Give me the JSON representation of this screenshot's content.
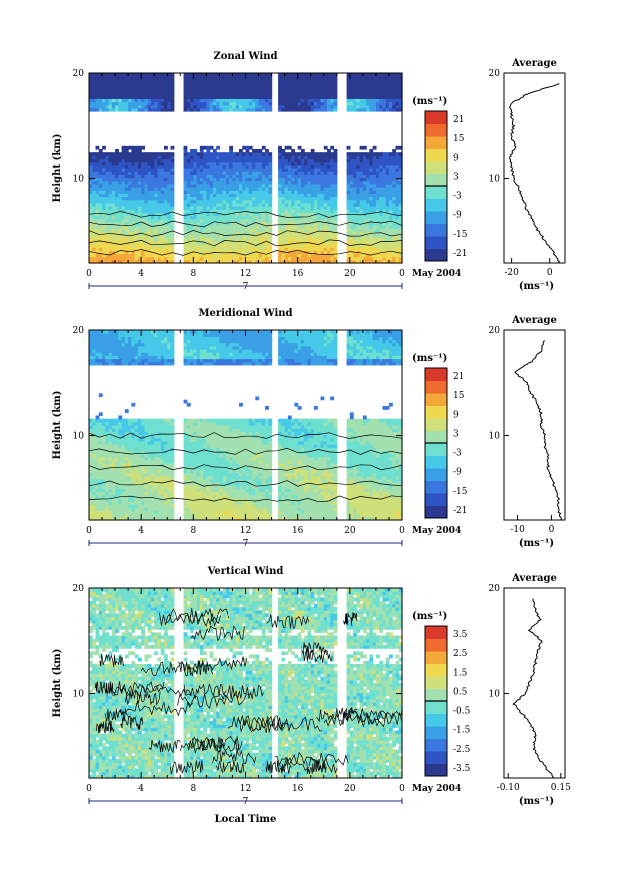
{
  "figure": {
    "x_axis_title": "Local Time",
    "date_label": "May 2004",
    "day_marker": "7"
  },
  "colors": {
    "colorbar": [
      "#2b3a8f",
      "#2f55c4",
      "#3a78e0",
      "#3aa0e6",
      "#46c9e8",
      "#6fe0d0",
      "#a3e0b0",
      "#cfe07a",
      "#f0d84e",
      "#f5a83a",
      "#ef6a2e",
      "#d93a2a"
    ],
    "contour": "#000000",
    "zero_line": "#000000"
  },
  "chart_data": [
    {
      "type": "heatmap",
      "title": "Zonal Wind",
      "ylabel": "Height (km)",
      "xlim": [
        0,
        24
      ],
      "ylim": [
        2,
        20
      ],
      "x_ticks": [
        "0",
        "4",
        "8",
        "12",
        "16",
        "20",
        "0"
      ],
      "y_ticks": [
        "20",
        "10"
      ],
      "colorbar": {
        "unit": "(ms⁻¹)",
        "ticks": [
          "21",
          "15",
          "9",
          "3",
          "-3",
          "-9",
          "-15",
          "-21"
        ],
        "range": [
          -24,
          24
        ]
      },
      "gaps_x": [
        6.9,
        14.3,
        19.4
      ],
      "profile": {
        "title": "Average",
        "unit": "(ms⁻¹)",
        "x_ticks": [
          "-20",
          "0"
        ],
        "xlim": [
          -24,
          8
        ],
        "y_ticks": [
          "20",
          "10"
        ],
        "heights": [
          2,
          3,
          4,
          5,
          6,
          7,
          8,
          9,
          10,
          11,
          12,
          13,
          14,
          15,
          16,
          17,
          18,
          19
        ],
        "values": [
          5,
          2,
          -2,
          -6,
          -9,
          -12,
          -14,
          -16,
          -19,
          -20,
          -21,
          -18,
          -20,
          -19,
          -20,
          -21,
          -12,
          5
        ]
      }
    },
    {
      "type": "heatmap",
      "title": "Meridional Wind",
      "ylabel": "Height (km)",
      "xlim": [
        0,
        24
      ],
      "ylim": [
        2,
        20
      ],
      "x_ticks": [
        "0",
        "4",
        "8",
        "12",
        "16",
        "20",
        "0"
      ],
      "y_ticks": [
        "20",
        "10"
      ],
      "colorbar": {
        "unit": "(ms⁻¹)",
        "ticks": [
          "21",
          "15",
          "9",
          "3",
          "-3",
          "-9",
          "-15",
          "-21"
        ],
        "range": [
          -24,
          24
        ]
      },
      "gaps_x": [
        6.9,
        14.3,
        19.4
      ],
      "profile": {
        "title": "Average",
        "unit": "(ms⁻¹)",
        "x_ticks": [
          "-10",
          "0"
        ],
        "xlim": [
          -14,
          4
        ],
        "y_ticks": [
          "20",
          "10"
        ],
        "heights": [
          2,
          3,
          4,
          5,
          6,
          7,
          8,
          9,
          10,
          11,
          12,
          13,
          14,
          15,
          16,
          17,
          18,
          19
        ],
        "values": [
          3,
          2,
          2,
          1,
          0,
          -1,
          -1,
          -2,
          -2,
          -3,
          -3,
          -4,
          -6,
          -7,
          -11,
          -6,
          -3,
          -2
        ]
      }
    },
    {
      "type": "heatmap",
      "title": "Vertical Wind",
      "ylabel": "Height (km)",
      "xlim": [
        0,
        24
      ],
      "ylim": [
        2,
        20
      ],
      "x_ticks": [
        "0",
        "4",
        "8",
        "12",
        "16",
        "20",
        "0"
      ],
      "y_ticks": [
        "20",
        "10"
      ],
      "colorbar": {
        "unit": "(ms⁻¹)",
        "ticks": [
          "3.5",
          "2.5",
          "1.5",
          "0.5",
          "-0.5",
          "-1.5",
          "-2.5",
          "-3.5"
        ],
        "range": [
          -4,
          4
        ]
      },
      "gaps_x": [
        6.9,
        14.3,
        19.4
      ],
      "profile": {
        "title": "Average",
        "unit": "(ms⁻¹)",
        "x_ticks": [
          "-0.10",
          "0.15"
        ],
        "xlim": [
          -0.12,
          0.17
        ],
        "y_ticks": [
          "20",
          "10"
        ],
        "heights": [
          2,
          3,
          4,
          5,
          6,
          7,
          8,
          9,
          10,
          11,
          12,
          13,
          14,
          15,
          16,
          17,
          18,
          19
        ],
        "values": [
          0.12,
          0.08,
          0.04,
          0.02,
          0.03,
          0.01,
          -0.03,
          -0.07,
          -0.02,
          0.0,
          0.02,
          0.03,
          0.04,
          0.06,
          0.0,
          0.05,
          0.03,
          0.02
        ]
      }
    }
  ]
}
